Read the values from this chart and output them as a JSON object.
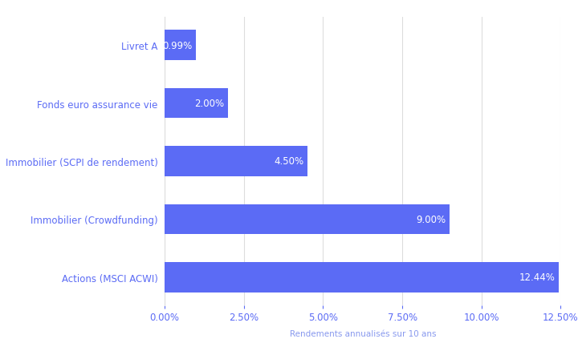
{
  "categories": [
    "Actions (MSCI ACWI)",
    "Immobilier (Crowdfunding)",
    "Immobilier (SCPI de rendement)",
    "Fonds euro assurance vie",
    "Livret A"
  ],
  "values": [
    12.44,
    9.0,
    4.5,
    2.0,
    0.99
  ],
  "labels": [
    "12.44%",
    "9.00%",
    "4.50%",
    "2.00%",
    "0.99%"
  ],
  "bar_color": "#5B6BF5",
  "background_color": "#ffffff",
  "xlabel": "Rendements annualisés sur 10 ans",
  "xlabel_color": "#8899EE",
  "xlim": [
    0,
    12.5
  ],
  "xticks": [
    0.0,
    2.5,
    5.0,
    7.5,
    10.0,
    12.5
  ],
  "xtick_labels": [
    "0.00%",
    "2.50%",
    "5.00%",
    "7.50%",
    "10.00%",
    "12.50%"
  ],
  "grid_color": "#dddddd",
  "label_fontsize": 8.5,
  "ylabel_fontsize": 8.5,
  "xlabel_fontsize": 7.5,
  "bar_color_ytick": "#5B6BF5",
  "bar_height": 0.52
}
